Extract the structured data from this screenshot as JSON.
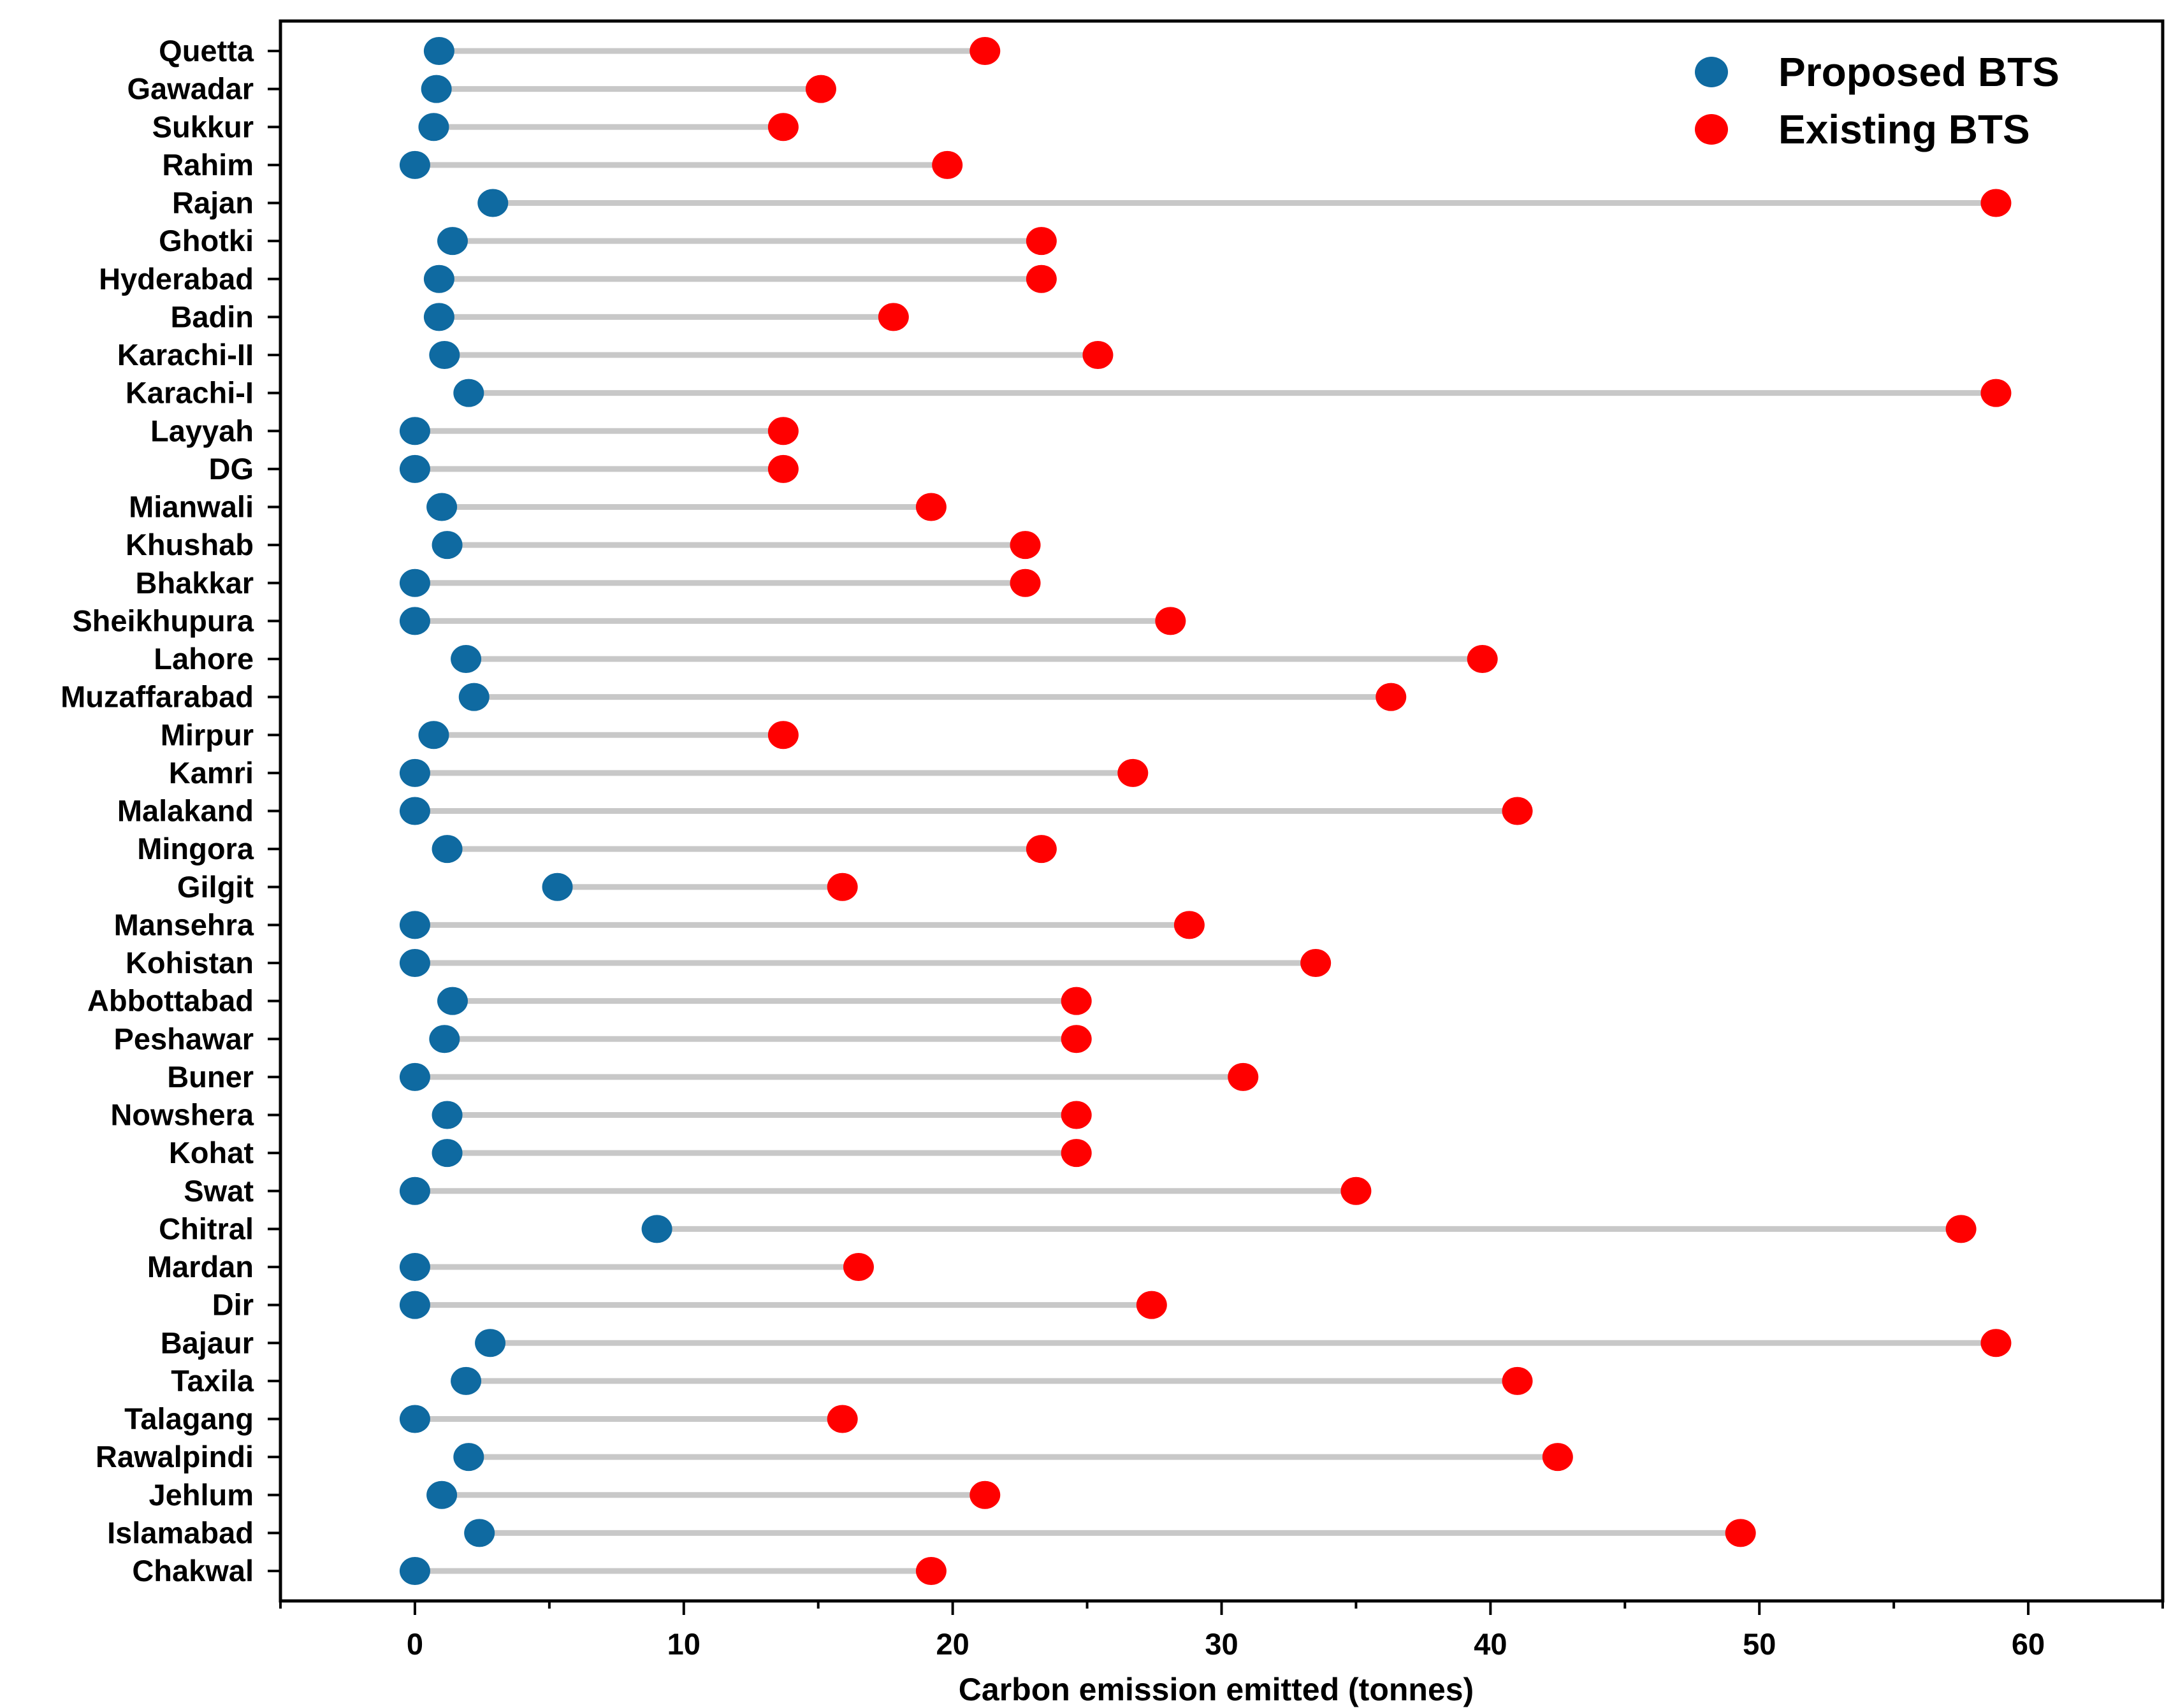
{
  "chart_data": {
    "type": "scatter",
    "subtype": "dumbbell",
    "title": "",
    "xlabel": "Carbon emission emitted (tonnes)",
    "ylabel": "",
    "xlim": [
      -5,
      65
    ],
    "xticks": [
      0,
      10,
      20,
      30,
      40,
      50,
      60
    ],
    "grid": false,
    "legend_position": "top-right",
    "categories": [
      "Quetta",
      "Gawadar",
      "Sukkur",
      "Rahim",
      "Rajan",
      "Ghotki",
      "Hyderabad",
      "Badin",
      "Karachi-II",
      "Karachi-I",
      "Layyah",
      "DG",
      "Mianwali",
      "Khushab",
      "Bhakkar",
      "Sheikhupura",
      "Lahore",
      "Muzaffarabad",
      "Mirpur",
      "Kamri",
      "Malakand",
      "Mingora",
      "Gilgit",
      "Mansehra",
      "Kohistan",
      "Abbottabad",
      "Peshawar",
      "Buner",
      "Nowshera",
      "Kohat",
      "Swat",
      "Chitral",
      "Mardan",
      "Dir",
      "Bajaur",
      "Taxila",
      "Talagang",
      "Rawalpindi",
      "Jehlum",
      "Islamabad",
      "Chakwal"
    ],
    "series": [
      {
        "name": "Proposed BTS",
        "color": "#0f6aa1",
        "values": [
          0.9,
          0.8,
          0.7,
          0.0,
          2.9,
          1.4,
          0.9,
          0.9,
          1.1,
          2.0,
          0.0,
          0.0,
          1.0,
          1.2,
          0.0,
          0.0,
          1.9,
          2.2,
          0.7,
          0.0,
          0.0,
          1.2,
          5.3,
          0.0,
          0.0,
          1.4,
          1.1,
          0.0,
          1.2,
          1.2,
          0.0,
          9.0,
          0.0,
          0.0,
          2.8,
          1.9,
          0.0,
          2.0,
          1.0,
          2.4,
          0.0
        ]
      },
      {
        "name": "Existing BTS",
        "color": "#ff0000",
        "values": [
          21.2,
          15.1,
          13.7,
          19.8,
          58.8,
          23.3,
          23.3,
          17.8,
          25.4,
          58.8,
          13.7,
          13.7,
          19.2,
          22.7,
          22.7,
          28.1,
          39.7,
          36.3,
          13.7,
          26.7,
          41.0,
          23.3,
          15.9,
          28.8,
          33.5,
          24.6,
          24.6,
          30.8,
          24.6,
          24.6,
          35.0,
          57.5,
          16.5,
          27.4,
          58.8,
          41.0,
          15.9,
          42.5,
          21.2,
          49.3,
          19.2
        ]
      }
    ],
    "connector_color": "#c8c8c8"
  }
}
